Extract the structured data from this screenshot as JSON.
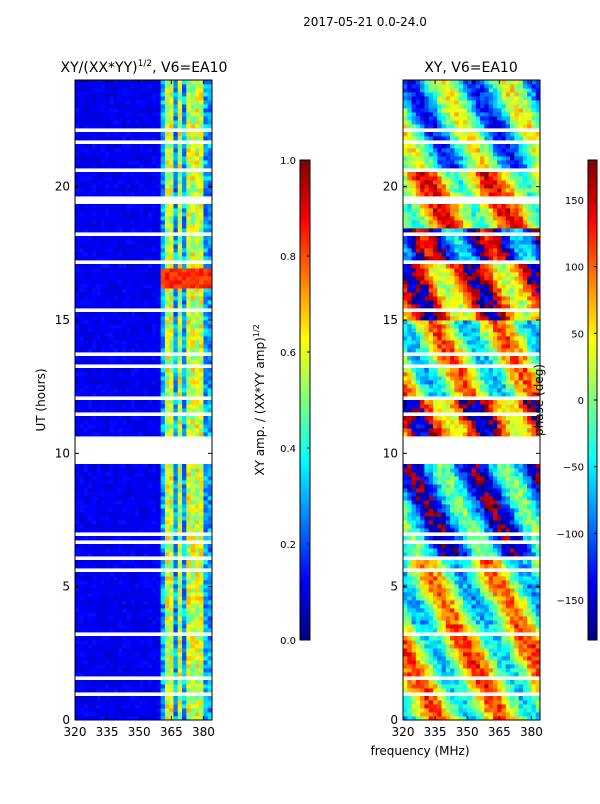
{
  "figure": {
    "suptitle": "2017-05-21 0.0-24.0",
    "shared_xlabel": "frequency (MHz)"
  },
  "chart_data": [
    {
      "type": "heatmap",
      "title": "XY/(XX*YY)",
      "title_sup": "1/2",
      "title_tail": ", V6=EA10",
      "xlabel": "",
      "ylabel": "UT (hours)",
      "xlim": [
        320,
        384
      ],
      "ylim": [
        0,
        24
      ],
      "xticks": [
        320,
        335,
        350,
        365,
        380
      ],
      "yticks": [
        0,
        5,
        10,
        15,
        20
      ],
      "colorbar": {
        "label": "XY amp. / (XX*YY amp)",
        "label_sup": "1/2",
        "range": [
          0.0,
          1.0
        ],
        "ticks": [
          "0.0",
          "0.2",
          "0.4",
          "0.6",
          "0.8",
          "1.0"
        ],
        "colormap": "jet"
      }
    },
    {
      "type": "heatmap",
      "title": "XY, V6=EA10",
      "xlabel": "frequency (MHz)",
      "ylabel": "",
      "xlim": [
        320,
        384
      ],
      "ylim": [
        0,
        24
      ],
      "xticks": [
        320,
        335,
        350,
        365,
        380
      ],
      "yticks": [
        0,
        5,
        10,
        15,
        20
      ],
      "colorbar": {
        "label": "phase (deg)",
        "range": [
          -180,
          180
        ],
        "ticks": [
          "-150",
          "-100",
          "-50",
          "0",
          "50",
          "100",
          "150"
        ],
        "colormap": "jet"
      }
    }
  ],
  "colors": {
    "jet": [
      "#00007f",
      "#0000ff",
      "#007fff",
      "#00ffff",
      "#7fff7f",
      "#ffff00",
      "#ff7f00",
      "#ff0000",
      "#7f0000"
    ],
    "background": "#ffffff"
  },
  "flagged_hour_ranges": [
    [
      0.25,
      0.3
    ],
    [
      0.62,
      0.66
    ],
    [
      0.95,
      1.0
    ],
    [
      1.3,
      1.34
    ],
    [
      1.55,
      1.6
    ],
    [
      1.78,
      1.82
    ],
    [
      2.68,
      2.74
    ],
    [
      2.88,
      2.92
    ],
    [
      3.2,
      3.24
    ],
    [
      3.55,
      3.6
    ],
    [
      3.85,
      3.9
    ],
    [
      4.75,
      4.8
    ],
    [
      5.05,
      5.09
    ],
    [
      5.35,
      5.4
    ],
    [
      5.62,
      5.66
    ],
    [
      6.05,
      6.18
    ],
    [
      6.65,
      6.7
    ],
    [
      6.95,
      7.0
    ],
    [
      7.45,
      7.5
    ],
    [
      8.05,
      8.1
    ],
    [
      8.4,
      8.45
    ],
    [
      8.95,
      9.0
    ],
    [
      9.62,
      10.62
    ],
    [
      11.45,
      11.5
    ],
    [
      12.05,
      12.1
    ],
    [
      12.4,
      12.45
    ],
    [
      12.75,
      12.8
    ],
    [
      13.25,
      13.3
    ],
    [
      13.7,
      13.74
    ],
    [
      14.1,
      14.15
    ],
    [
      15.0,
      15.05
    ],
    [
      15.35,
      15.4
    ],
    [
      15.75,
      15.8
    ],
    [
      16.45,
      16.5
    ],
    [
      17.15,
      17.25
    ],
    [
      17.8,
      17.85
    ],
    [
      18.15,
      18.35
    ],
    [
      18.85,
      18.9
    ],
    [
      19.15,
      19.2
    ],
    [
      19.4,
      19.62
    ],
    [
      20.55,
      20.75
    ],
    [
      21.65,
      21.7
    ],
    [
      22.1,
      22.15
    ],
    [
      22.35,
      22.4
    ],
    [
      22.95,
      23.0
    ],
    [
      23.2,
      23.25
    ]
  ],
  "amp_hot_window": {
    "hours": [
      16.2,
      17.0
    ],
    "value": 0.88
  },
  "amp_rfi_channels_mhz": [
    345,
    347,
    352,
    356,
    359,
    364,
    369,
    374,
    378
  ],
  "phase_zone_hours": [
    {
      "hours": [
        0.0,
        3.6
      ],
      "bias": 30
    },
    {
      "hours": [
        3.6,
        6.0
      ],
      "bias": 10
    },
    {
      "hours": [
        6.0,
        9.6
      ],
      "bias": -90
    },
    {
      "hours": [
        9.6,
        10.62
      ],
      "bias": 0
    },
    {
      "hours": [
        10.62,
        12.0
      ],
      "bias": 120
    },
    {
      "hours": [
        12.0,
        15.0
      ],
      "bias": 20
    },
    {
      "hours": [
        15.0,
        17.2
      ],
      "bias": 110
    },
    {
      "hours": [
        17.2,
        18.4
      ],
      "bias": -140
    },
    {
      "hours": [
        18.4,
        20.7
      ],
      "bias": 60
    },
    {
      "hours": [
        20.7,
        24.0
      ],
      "bias": -40
    }
  ]
}
